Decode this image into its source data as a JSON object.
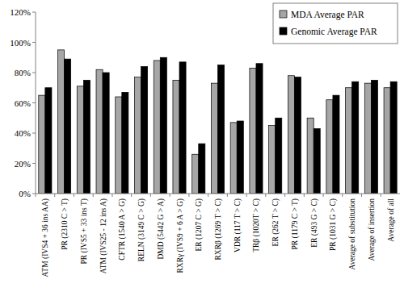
{
  "chart_data": {
    "type": "bar",
    "categories": [
      "ATM (IVS4 + 36 ins AA)",
      "PR (2310 C > T)",
      "PR (IVS5 + 33 ins T)",
      "ATM (IVS25 - 12 ins A)",
      "CFTR (1540 A > G)",
      "RELN (3149 C > G)",
      "DMD (5442 G > A)",
      "RXRγ (IVS9 + 6 A > G)",
      "ER (1207 C > G)",
      "RXRβ (1269 T > C)",
      "VDR (117 T > C)",
      "TRβ (1020T > C)",
      "ER (262 T > C)",
      "PR (1179 C > T)",
      "ER (493 G > C)",
      "PR (1031 G > C)",
      "Average of substitution",
      "Average of insertion",
      "Average of all"
    ],
    "series": [
      {
        "name": "MDA Average PAR",
        "color": "#a6a6a6",
        "values": [
          65,
          95,
          71,
          82,
          64,
          77,
          88,
          75,
          26,
          73,
          47,
          83,
          45,
          78,
          50,
          62,
          70,
          73,
          70
        ]
      },
      {
        "name": "Genomic Average PAR",
        "color": "#000000",
        "values": [
          70,
          89,
          75,
          80,
          67,
          84,
          90,
          87,
          33,
          85,
          48,
          86,
          50,
          77,
          43,
          65,
          74,
          75,
          74
        ]
      }
    ],
    "ylim": [
      0,
      120
    ],
    "yticks": [
      {
        "value": 0,
        "label": "0%"
      },
      {
        "value": 20,
        "label": "20%"
      },
      {
        "value": 40,
        "label": "40%"
      },
      {
        "value": 60,
        "label": "60%"
      },
      {
        "value": 80,
        "label": "80%"
      },
      {
        "value": 100,
        "label": "100%"
      },
      {
        "value": 120,
        "label": "120%"
      }
    ],
    "grid": false,
    "legend": "top-right"
  }
}
